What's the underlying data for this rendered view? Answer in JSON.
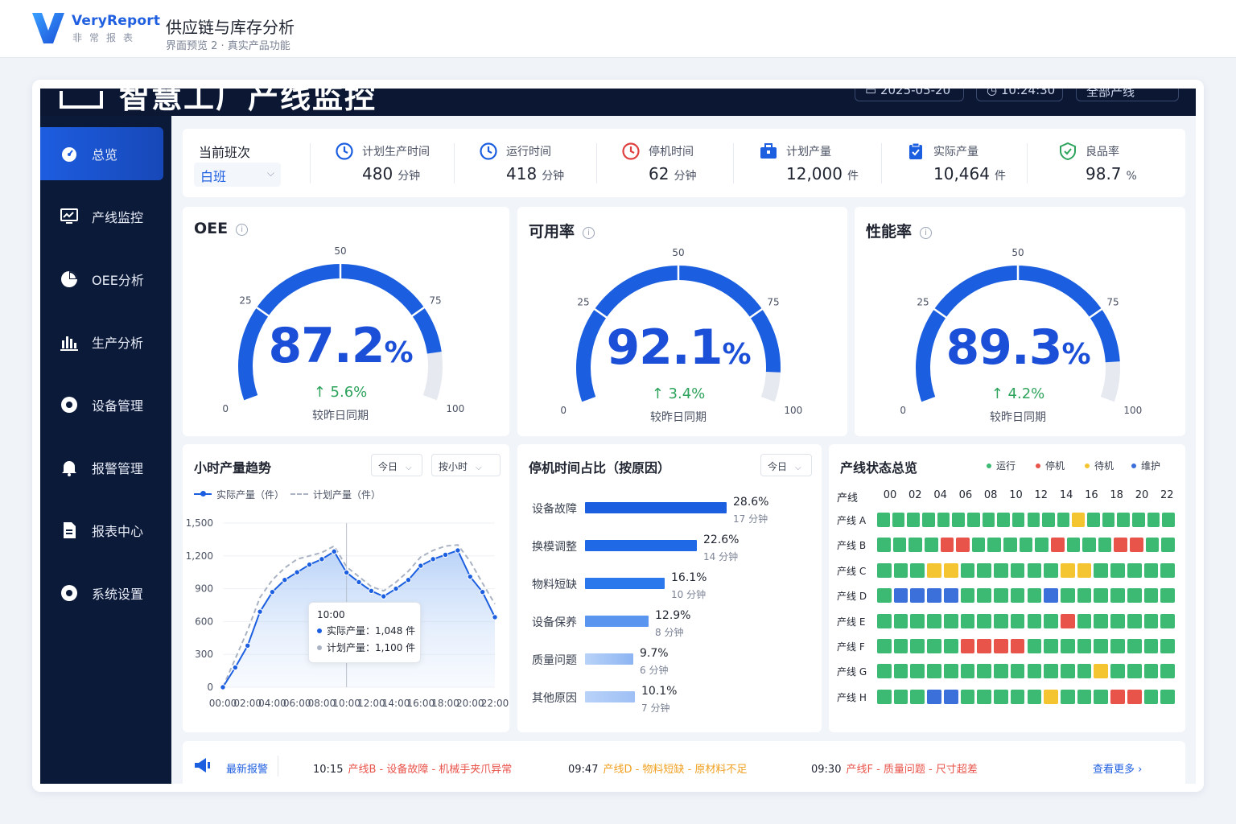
{
  "topbar": {
    "brand_en": "VeryReport",
    "brand_cn": "非常报表",
    "title": "供应链与库存分析",
    "subtitle": "界面预览 2 · 真实产品功能"
  },
  "dashboard": {
    "header_title": "智慧工厂产线监控",
    "date": "2025-05-20",
    "time": "10:24:30",
    "scope": "全部产线"
  },
  "sidebar": {
    "items": [
      {
        "label": "总览",
        "icon": "dashboard-icon",
        "active": true
      },
      {
        "label": "产线监控",
        "icon": "monitor-icon"
      },
      {
        "label": "OEE分析",
        "icon": "pie-chart-icon"
      },
      {
        "label": "生产分析",
        "icon": "bar-chart-icon"
      },
      {
        "label": "设备管理",
        "icon": "gear-icon"
      },
      {
        "label": "报警管理",
        "icon": "bell-icon"
      },
      {
        "label": "报表中心",
        "icon": "document-icon"
      },
      {
        "label": "系统设置",
        "icon": "settings-icon"
      }
    ]
  },
  "shift": {
    "label": "当前班次",
    "value": "白班"
  },
  "kpis": [
    {
      "label": "计划生产时间",
      "value": "480",
      "unit": "分钟",
      "icon": "clock-icon",
      "color": "#1b5fe0"
    },
    {
      "label": "运行时间",
      "value": "418",
      "unit": "分钟",
      "icon": "clock-icon",
      "color": "#1b5fe0"
    },
    {
      "label": "停机时间",
      "value": "62",
      "unit": "分钟",
      "icon": "clock-alert-icon",
      "color": "#e04040"
    },
    {
      "label": "计划产量",
      "value": "12,000",
      "unit": "件",
      "icon": "briefcase-icon",
      "color": "#1b5fe0"
    },
    {
      "label": "实际产量",
      "value": "10,464",
      "unit": "件",
      "icon": "clipboard-icon",
      "color": "#1b5fe0"
    },
    {
      "label": "良品率",
      "value": "98.7",
      "unit": "%",
      "icon": "shield-check-icon",
      "color": "#2ea35c"
    }
  ],
  "gauges": [
    {
      "title": "OEE",
      "value": 87.2,
      "value_text": "87.2",
      "delta": "5.6%",
      "compare": "较昨日同期"
    },
    {
      "title": "可用率",
      "value": 92.1,
      "value_text": "92.1",
      "delta": "3.4%",
      "compare": "较昨日同期"
    },
    {
      "title": "性能率",
      "value": 89.3,
      "value_text": "89.3",
      "delta": "4.2%",
      "compare": "较昨日同期"
    }
  ],
  "gauge_ticks": [
    "0",
    "25",
    "50",
    "75",
    "100"
  ],
  "trend": {
    "title": "小时产量趋势",
    "filter_day": "今日",
    "filter_gran": "按小时",
    "legend_actual": "实际产量（件）",
    "legend_plan": "计划产量（件）",
    "tooltip": {
      "time": "10:00",
      "actual": "实际产量：1,048 件",
      "plan": "计划产量：1,100 件"
    }
  },
  "downtime": {
    "title": "停机时间占比（按原因）",
    "filter": "今日",
    "items": [
      {
        "reason": "设备故障",
        "pct": "28.6%",
        "mins": "17 分钟",
        "value": 28.6
      },
      {
        "reason": "换模调整",
        "pct": "22.6%",
        "mins": "14 分钟",
        "value": 22.6
      },
      {
        "reason": "物料短缺",
        "pct": "16.1%",
        "mins": "10 分钟",
        "value": 16.1
      },
      {
        "reason": "设备保养",
        "pct": "12.9%",
        "mins": "8 分钟",
        "value": 12.9
      },
      {
        "reason": "质量问题",
        "pct": "9.7%",
        "mins": "6 分钟",
        "value": 9.7
      },
      {
        "reason": "其他原因",
        "pct": "10.1%",
        "mins": "7 分钟",
        "value": 10.1
      }
    ]
  },
  "status": {
    "title": "产线状态总览",
    "legend": [
      {
        "label": "运行",
        "color": "#3cba73"
      },
      {
        "label": "停机",
        "color": "#e8534a"
      },
      {
        "label": "待机",
        "color": "#f5c531"
      },
      {
        "label": "维护",
        "color": "#3b6fd9"
      }
    ],
    "col_header": "产线",
    "hours": [
      "00",
      "02",
      "04",
      "06",
      "08",
      "10",
      "12",
      "14",
      "16",
      "18",
      "20",
      "22"
    ],
    "lines": [
      {
        "name": "产线 A",
        "cells": "RRRRRRRRRRRRRYRRRRRR"
      },
      {
        "name": "产线 B",
        "cells": "RRRRSSRRRRRSRRRSSRR"
      },
      {
        "name": "产线 C",
        "cells": "RRRYYRRRRRRYYRRRRR"
      },
      {
        "name": "产线 D",
        "cells": "RMMMMRRRRRMRRRRRRR"
      },
      {
        "name": "产线 E",
        "cells": "RRRRRRRRRRRSRRRRRR"
      },
      {
        "name": "产线 F",
        "cells": "RRRRRSSSSRRRRRRRRR"
      },
      {
        "name": "产线 G",
        "cells": "RRRRRRRRRRRRRYRRRR"
      },
      {
        "name": "产线 H",
        "cells": "RRRMMRRRRRYRRRSSRR"
      }
    ]
  },
  "alarms": {
    "title": "最新报警",
    "items": [
      {
        "time": "10:15",
        "text": "产线B - 设备故障 - 机械手夹爪异常",
        "color": "#e8534a"
      },
      {
        "time": "09:47",
        "text": "产线D - 物料短缺 - 原材料不足",
        "color": "#f0a020"
      },
      {
        "time": "09:30",
        "text": "产线F - 质量问题 - 尺寸超差",
        "color": "#e8534a"
      }
    ],
    "more": "查看更多"
  },
  "chart_data": {
    "type": "line",
    "title": "小时产量趋势",
    "x": [
      "00:00",
      "01:00",
      "02:00",
      "03:00",
      "04:00",
      "05:00",
      "06:00",
      "07:00",
      "08:00",
      "09:00",
      "10:00",
      "11:00",
      "12:00",
      "13:00",
      "14:00",
      "15:00",
      "16:00",
      "17:00",
      "18:00",
      "19:00",
      "20:00",
      "21:00",
      "22:00"
    ],
    "series": [
      {
        "name": "实际产量（件）",
        "values": [
          0,
          180,
          380,
          690,
          870,
          980,
          1050,
          1120,
          1170,
          1240,
          1048,
          960,
          880,
          830,
          900,
          980,
          1110,
          1170,
          1210,
          1250,
          1010,
          870,
          640
        ]
      },
      {
        "name": "计划产量（件）",
        "values": [
          0,
          260,
          520,
          820,
          980,
          1090,
          1170,
          1200,
          1230,
          1290,
          1100,
          1010,
          920,
          880,
          960,
          1060,
          1190,
          1250,
          1290,
          1300,
          1150,
          950,
          760
        ]
      }
    ],
    "ylim": [
      0,
      1500
    ],
    "yticks": [
      "0",
      "300",
      "600",
      "900",
      "1,200",
      "1,500"
    ],
    "xticks": [
      "00:00",
      "02:00",
      "04:00",
      "06:00",
      "08:00",
      "10:00",
      "12:00",
      "14:00",
      "16:00",
      "18:00",
      "20:00",
      "22:00"
    ]
  }
}
